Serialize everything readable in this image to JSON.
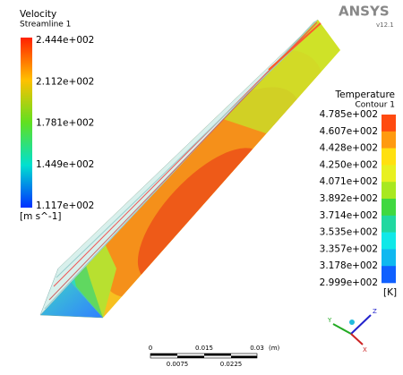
{
  "logo": {
    "name": "ANSYS",
    "version": "v12.1"
  },
  "velocity_legend": {
    "title": "Velocity",
    "subtitle": "Streamline 1",
    "labels": [
      "2.444e+002",
      "2.112e+002",
      "1.781e+002",
      "1.449e+002",
      "1.117e+002"
    ],
    "unit": "[m s^-1]"
  },
  "temperature_legend": {
    "title": "Temperature",
    "subtitle": "Contour 1",
    "labels": [
      "4.785e+002",
      "4.607e+002",
      "4.428e+002",
      "4.250e+002",
      "4.071e+002",
      "3.892e+002",
      "3.714e+002",
      "3.535e+002",
      "3.357e+002",
      "3.178e+002",
      "2.999e+002"
    ],
    "unit": "[K]"
  },
  "scale_bar": {
    "upper_labels": [
      "0",
      "0.015",
      "0.03",
      "(m)"
    ],
    "lower_labels": [
      "0.0075",
      "0.0225"
    ]
  },
  "axes": {
    "x": "X",
    "y": "Y",
    "z": "Z"
  }
}
